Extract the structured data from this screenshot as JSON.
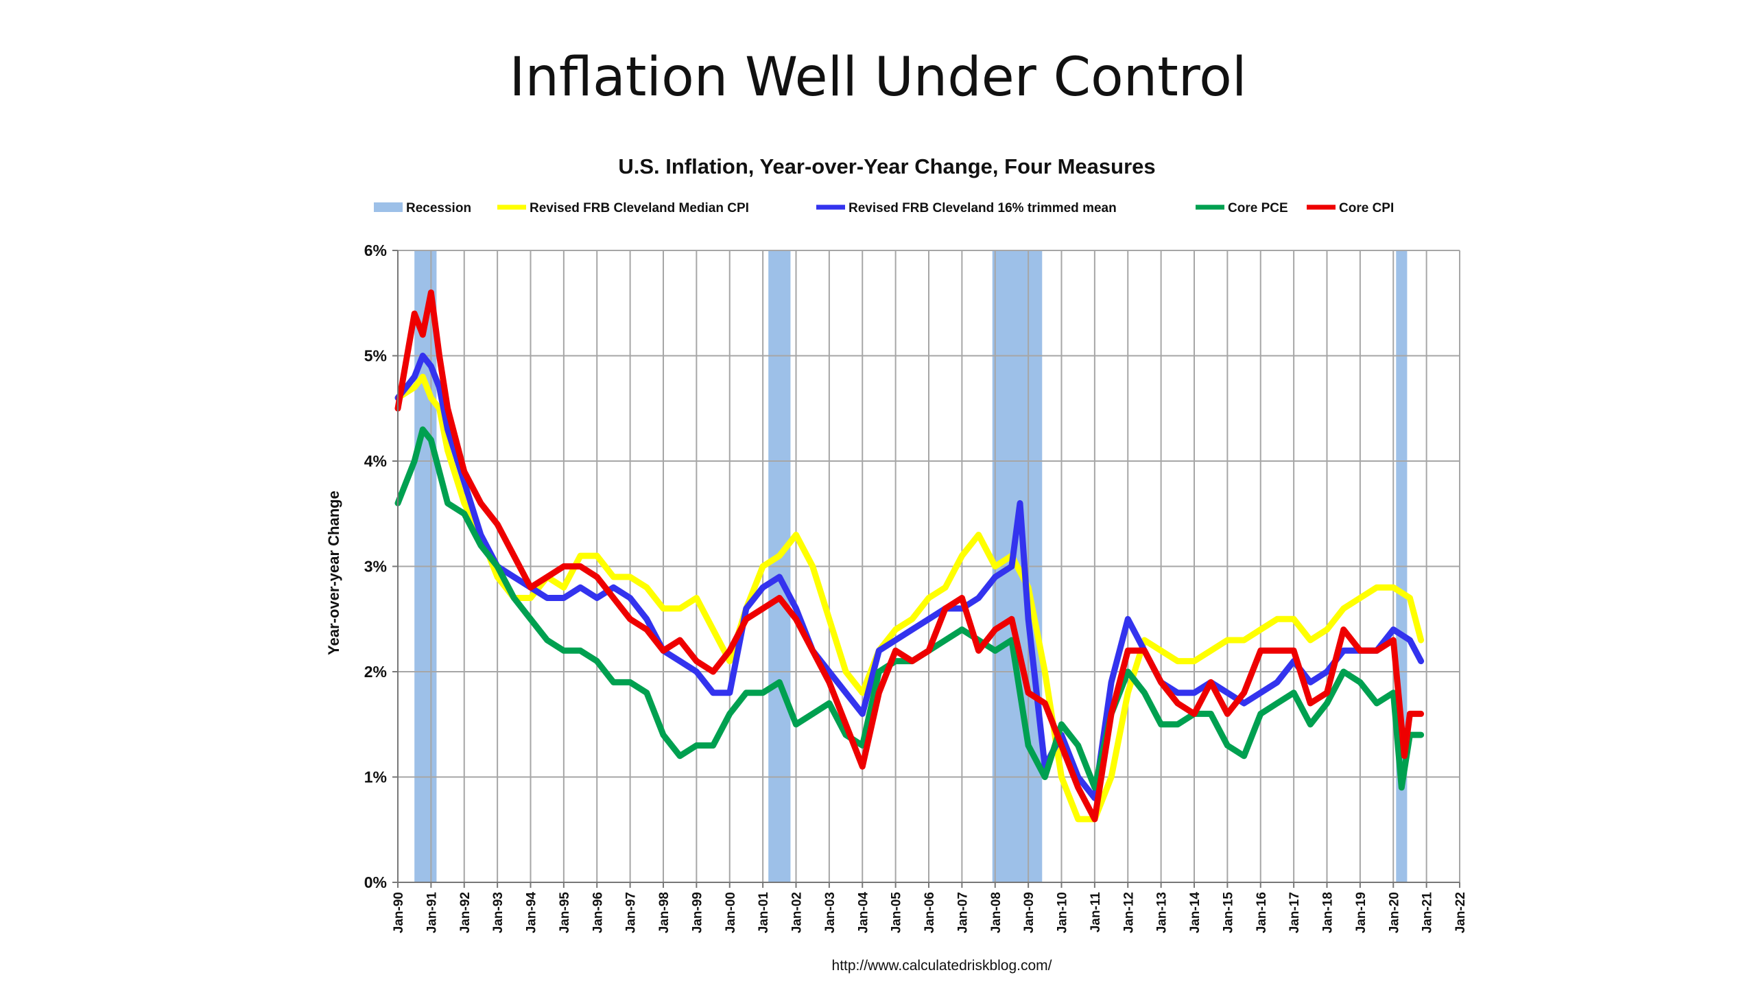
{
  "slide": {
    "title": "Inflation Well Under Control"
  },
  "chart_data": {
    "type": "line",
    "title": "U.S. Inflation, Year-over-Year Change, Four Measures",
    "ylabel": "Year-over-year Change",
    "xlabel": "",
    "source": "http://www.calculatedriskblog.com/",
    "ylim": [
      0,
      6
    ],
    "xlim": [
      1990,
      2022
    ],
    "grid": true,
    "legend_position": "top",
    "y_ticks": [
      "0%",
      "1%",
      "2%",
      "3%",
      "4%",
      "5%",
      "6%"
    ],
    "x_tick_labels": [
      "Jan-90",
      "Jan-91",
      "Jan-92",
      "Jan-93",
      "Jan-94",
      "Jan-95",
      "Jan-96",
      "Jan-97",
      "Jan-98",
      "Jan-99",
      "Jan-00",
      "Jan-01",
      "Jan-02",
      "Jan-03",
      "Jan-04",
      "Jan-05",
      "Jan-06",
      "Jan-07",
      "Jan-08",
      "Jan-09",
      "Jan-10",
      "Jan-11",
      "Jan-12",
      "Jan-13",
      "Jan-14",
      "Jan-15",
      "Jan-16",
      "Jan-17",
      "Jan-18",
      "Jan-19",
      "Jan-20",
      "Jan-21",
      "Jan-22"
    ],
    "recession": {
      "name": "Recession",
      "color": "#9dc0e8",
      "periods": [
        [
          "Jul-90",
          "Mar-91"
        ],
        [
          "Mar-01",
          "Nov-01"
        ],
        [
          "Dec-07",
          "Jun-09"
        ],
        [
          "Feb-20",
          "Jun-20"
        ]
      ]
    },
    "series": [
      {
        "name": "Revised FRB Cleveland Median CPI",
        "color": "#ffff00",
        "x": [
          "Jan-90",
          "Jul-90",
          "Oct-90",
          "Jan-91",
          "Apr-91",
          "Jul-91",
          "Jan-92",
          "Jul-92",
          "Jan-93",
          "Jul-93",
          "Jan-94",
          "Jul-94",
          "Jan-95",
          "Jul-95",
          "Jan-96",
          "Jul-96",
          "Jan-97",
          "Jul-97",
          "Jan-98",
          "Jul-98",
          "Jan-99",
          "Jul-99",
          "Jan-00",
          "Jul-00",
          "Jan-01",
          "Jul-01",
          "Jan-02",
          "Jul-02",
          "Jan-03",
          "Jul-03",
          "Jan-04",
          "Jul-04",
          "Jan-05",
          "Jul-05",
          "Jan-06",
          "Jul-06",
          "Jan-07",
          "Jul-07",
          "Jan-08",
          "Jul-08",
          "Jan-09",
          "Jul-09",
          "Jan-10",
          "Jul-10",
          "Jan-11",
          "Jul-11",
          "Jan-12",
          "Jul-12",
          "Jan-13",
          "Jul-13",
          "Jan-14",
          "Jul-14",
          "Jan-15",
          "Jul-15",
          "Jan-16",
          "Jul-16",
          "Jan-17",
          "Jul-17",
          "Jan-18",
          "Jul-18",
          "Jan-19",
          "Jul-19",
          "Jan-20",
          "Jul-20",
          "Nov-20"
        ],
        "values": [
          4.6,
          4.7,
          4.8,
          4.6,
          4.5,
          4.1,
          3.6,
          3.3,
          2.9,
          2.7,
          2.7,
          2.9,
          2.8,
          3.1,
          3.1,
          2.9,
          2.9,
          2.8,
          2.6,
          2.6,
          2.7,
          2.4,
          2.1,
          2.6,
          3.0,
          3.1,
          3.3,
          3.0,
          2.5,
          2.0,
          1.8,
          2.2,
          2.4,
          2.5,
          2.7,
          2.8,
          3.1,
          3.3,
          3.0,
          3.1,
          2.8,
          2.0,
          1.0,
          0.6,
          0.6,
          1.0,
          1.8,
          2.3,
          2.2,
          2.1,
          2.1,
          2.2,
          2.3,
          2.3,
          2.4,
          2.5,
          2.5,
          2.3,
          2.4,
          2.6,
          2.7,
          2.8,
          2.8,
          2.7,
          2.3
        ]
      },
      {
        "name": "Revised FRB Cleveland 16% trimmed mean",
        "color": "#3333ee",
        "x": [
          "Jan-90",
          "Jul-90",
          "Oct-90",
          "Jan-91",
          "Apr-91",
          "Jul-91",
          "Jan-92",
          "Jul-92",
          "Jan-93",
          "Jul-93",
          "Jan-94",
          "Jul-94",
          "Jan-95",
          "Jul-95",
          "Jan-96",
          "Jul-96",
          "Jan-97",
          "Jul-97",
          "Jan-98",
          "Jul-98",
          "Jan-99",
          "Jul-99",
          "Jan-00",
          "Jul-00",
          "Jan-01",
          "Jul-01",
          "Jan-02",
          "Jul-02",
          "Jan-03",
          "Jul-03",
          "Jan-04",
          "Jul-04",
          "Jan-05",
          "Jul-05",
          "Jan-06",
          "Jul-06",
          "Jan-07",
          "Jul-07",
          "Jan-08",
          "Jul-08",
          "Oct-08",
          "Jan-09",
          "Jul-09",
          "Jan-10",
          "Jul-10",
          "Jan-11",
          "Jul-11",
          "Jan-12",
          "Jul-12",
          "Jan-13",
          "Jul-13",
          "Jan-14",
          "Jul-14",
          "Jan-15",
          "Jul-15",
          "Jan-16",
          "Jul-16",
          "Jan-17",
          "Jul-17",
          "Jan-18",
          "Jul-18",
          "Jan-19",
          "Jul-19",
          "Jan-20",
          "Jul-20",
          "Nov-20"
        ],
        "values": [
          4.6,
          4.8,
          5.0,
          4.9,
          4.7,
          4.3,
          3.8,
          3.3,
          3.0,
          2.9,
          2.8,
          2.7,
          2.7,
          2.8,
          2.7,
          2.8,
          2.7,
          2.5,
          2.2,
          2.1,
          2.0,
          1.8,
          1.8,
          2.6,
          2.8,
          2.9,
          2.6,
          2.2,
          2.0,
          1.8,
          1.6,
          2.2,
          2.3,
          2.4,
          2.5,
          2.6,
          2.6,
          2.7,
          2.9,
          3.0,
          3.6,
          2.5,
          1.1,
          1.4,
          1.0,
          0.8,
          1.9,
          2.5,
          2.2,
          1.9,
          1.8,
          1.8,
          1.9,
          1.8,
          1.7,
          1.8,
          1.9,
          2.1,
          1.9,
          2.0,
          2.2,
          2.2,
          2.2,
          2.4,
          2.3,
          2.1
        ]
      },
      {
        "name": "Core PCE",
        "color": "#00a050",
        "x": [
          "Jan-90",
          "Jul-90",
          "Oct-90",
          "Jan-91",
          "Apr-91",
          "Jul-91",
          "Jan-92",
          "Jul-92",
          "Jan-93",
          "Jul-93",
          "Jan-94",
          "Jul-94",
          "Jan-95",
          "Jul-95",
          "Jan-96",
          "Jul-96",
          "Jan-97",
          "Jul-97",
          "Jan-98",
          "Jul-98",
          "Jan-99",
          "Jul-99",
          "Jan-00",
          "Jul-00",
          "Jan-01",
          "Jul-01",
          "Jan-02",
          "Jul-02",
          "Jan-03",
          "Jul-03",
          "Jan-04",
          "Jul-04",
          "Jan-05",
          "Jul-05",
          "Jan-06",
          "Jul-06",
          "Jan-07",
          "Jul-07",
          "Jan-08",
          "Jul-08",
          "Jan-09",
          "Jul-09",
          "Jan-10",
          "Jul-10",
          "Jan-11",
          "Jul-11",
          "Jan-12",
          "Jul-12",
          "Jan-13",
          "Jul-13",
          "Jan-14",
          "Jul-14",
          "Jan-15",
          "Jul-15",
          "Jan-16",
          "Jul-16",
          "Jan-17",
          "Jul-17",
          "Jan-18",
          "Jul-18",
          "Jan-19",
          "Jul-19",
          "Jan-20",
          "Apr-20",
          "Jul-20",
          "Nov-20"
        ],
        "values": [
          3.6,
          4.0,
          4.3,
          4.2,
          3.9,
          3.6,
          3.5,
          3.2,
          3.0,
          2.7,
          2.5,
          2.3,
          2.2,
          2.2,
          2.1,
          1.9,
          1.9,
          1.8,
          1.4,
          1.2,
          1.3,
          1.3,
          1.6,
          1.8,
          1.8,
          1.9,
          1.5,
          1.6,
          1.7,
          1.4,
          1.3,
          2.0,
          2.1,
          2.1,
          2.2,
          2.3,
          2.4,
          2.3,
          2.2,
          2.3,
          1.3,
          1.0,
          1.5,
          1.3,
          0.9,
          1.6,
          2.0,
          1.8,
          1.5,
          1.5,
          1.6,
          1.6,
          1.3,
          1.2,
          1.6,
          1.7,
          1.8,
          1.5,
          1.7,
          2.0,
          1.9,
          1.7,
          1.8,
          0.9,
          1.4,
          1.4
        ]
      },
      {
        "name": "Core CPI",
        "color": "#ee0000",
        "x": [
          "Jan-90",
          "Jul-90",
          "Oct-90",
          "Jan-91",
          "Apr-91",
          "Jul-91",
          "Jan-92",
          "Jul-92",
          "Jan-93",
          "Jul-93",
          "Jan-94",
          "Jul-94",
          "Jan-95",
          "Jul-95",
          "Jan-96",
          "Jul-96",
          "Jan-97",
          "Jul-97",
          "Jan-98",
          "Jul-98",
          "Jan-99",
          "Jul-99",
          "Jan-00",
          "Jul-00",
          "Jan-01",
          "Jul-01",
          "Jan-02",
          "Jul-02",
          "Jan-03",
          "Jul-03",
          "Jan-04",
          "Jul-04",
          "Jan-05",
          "Jul-05",
          "Jan-06",
          "Jul-06",
          "Jan-07",
          "Jul-07",
          "Jan-08",
          "Jul-08",
          "Jan-09",
          "Jul-09",
          "Jan-10",
          "Jul-10",
          "Jan-11",
          "Jul-11",
          "Jan-12",
          "Jul-12",
          "Jan-13",
          "Jul-13",
          "Jan-14",
          "Jul-14",
          "Jan-15",
          "Jul-15",
          "Jan-16",
          "Jul-16",
          "Jan-17",
          "Jul-17",
          "Jan-18",
          "Jul-18",
          "Jan-19",
          "Jul-19",
          "Jan-20",
          "May-20",
          "Jul-20",
          "Nov-20"
        ],
        "values": [
          4.5,
          5.4,
          5.2,
          5.6,
          5.0,
          4.5,
          3.9,
          3.6,
          3.4,
          3.1,
          2.8,
          2.9,
          3.0,
          3.0,
          2.9,
          2.7,
          2.5,
          2.4,
          2.2,
          2.3,
          2.1,
          2.0,
          2.2,
          2.5,
          2.6,
          2.7,
          2.5,
          2.2,
          1.9,
          1.5,
          1.1,
          1.8,
          2.2,
          2.1,
          2.2,
          2.6,
          2.7,
          2.2,
          2.4,
          2.5,
          1.8,
          1.7,
          1.3,
          0.9,
          0.6,
          1.6,
          2.2,
          2.2,
          1.9,
          1.7,
          1.6,
          1.9,
          1.6,
          1.8,
          2.2,
          2.2,
          2.2,
          1.7,
          1.8,
          2.4,
          2.2,
          2.2,
          2.3,
          1.2,
          1.6,
          1.6
        ]
      }
    ]
  }
}
